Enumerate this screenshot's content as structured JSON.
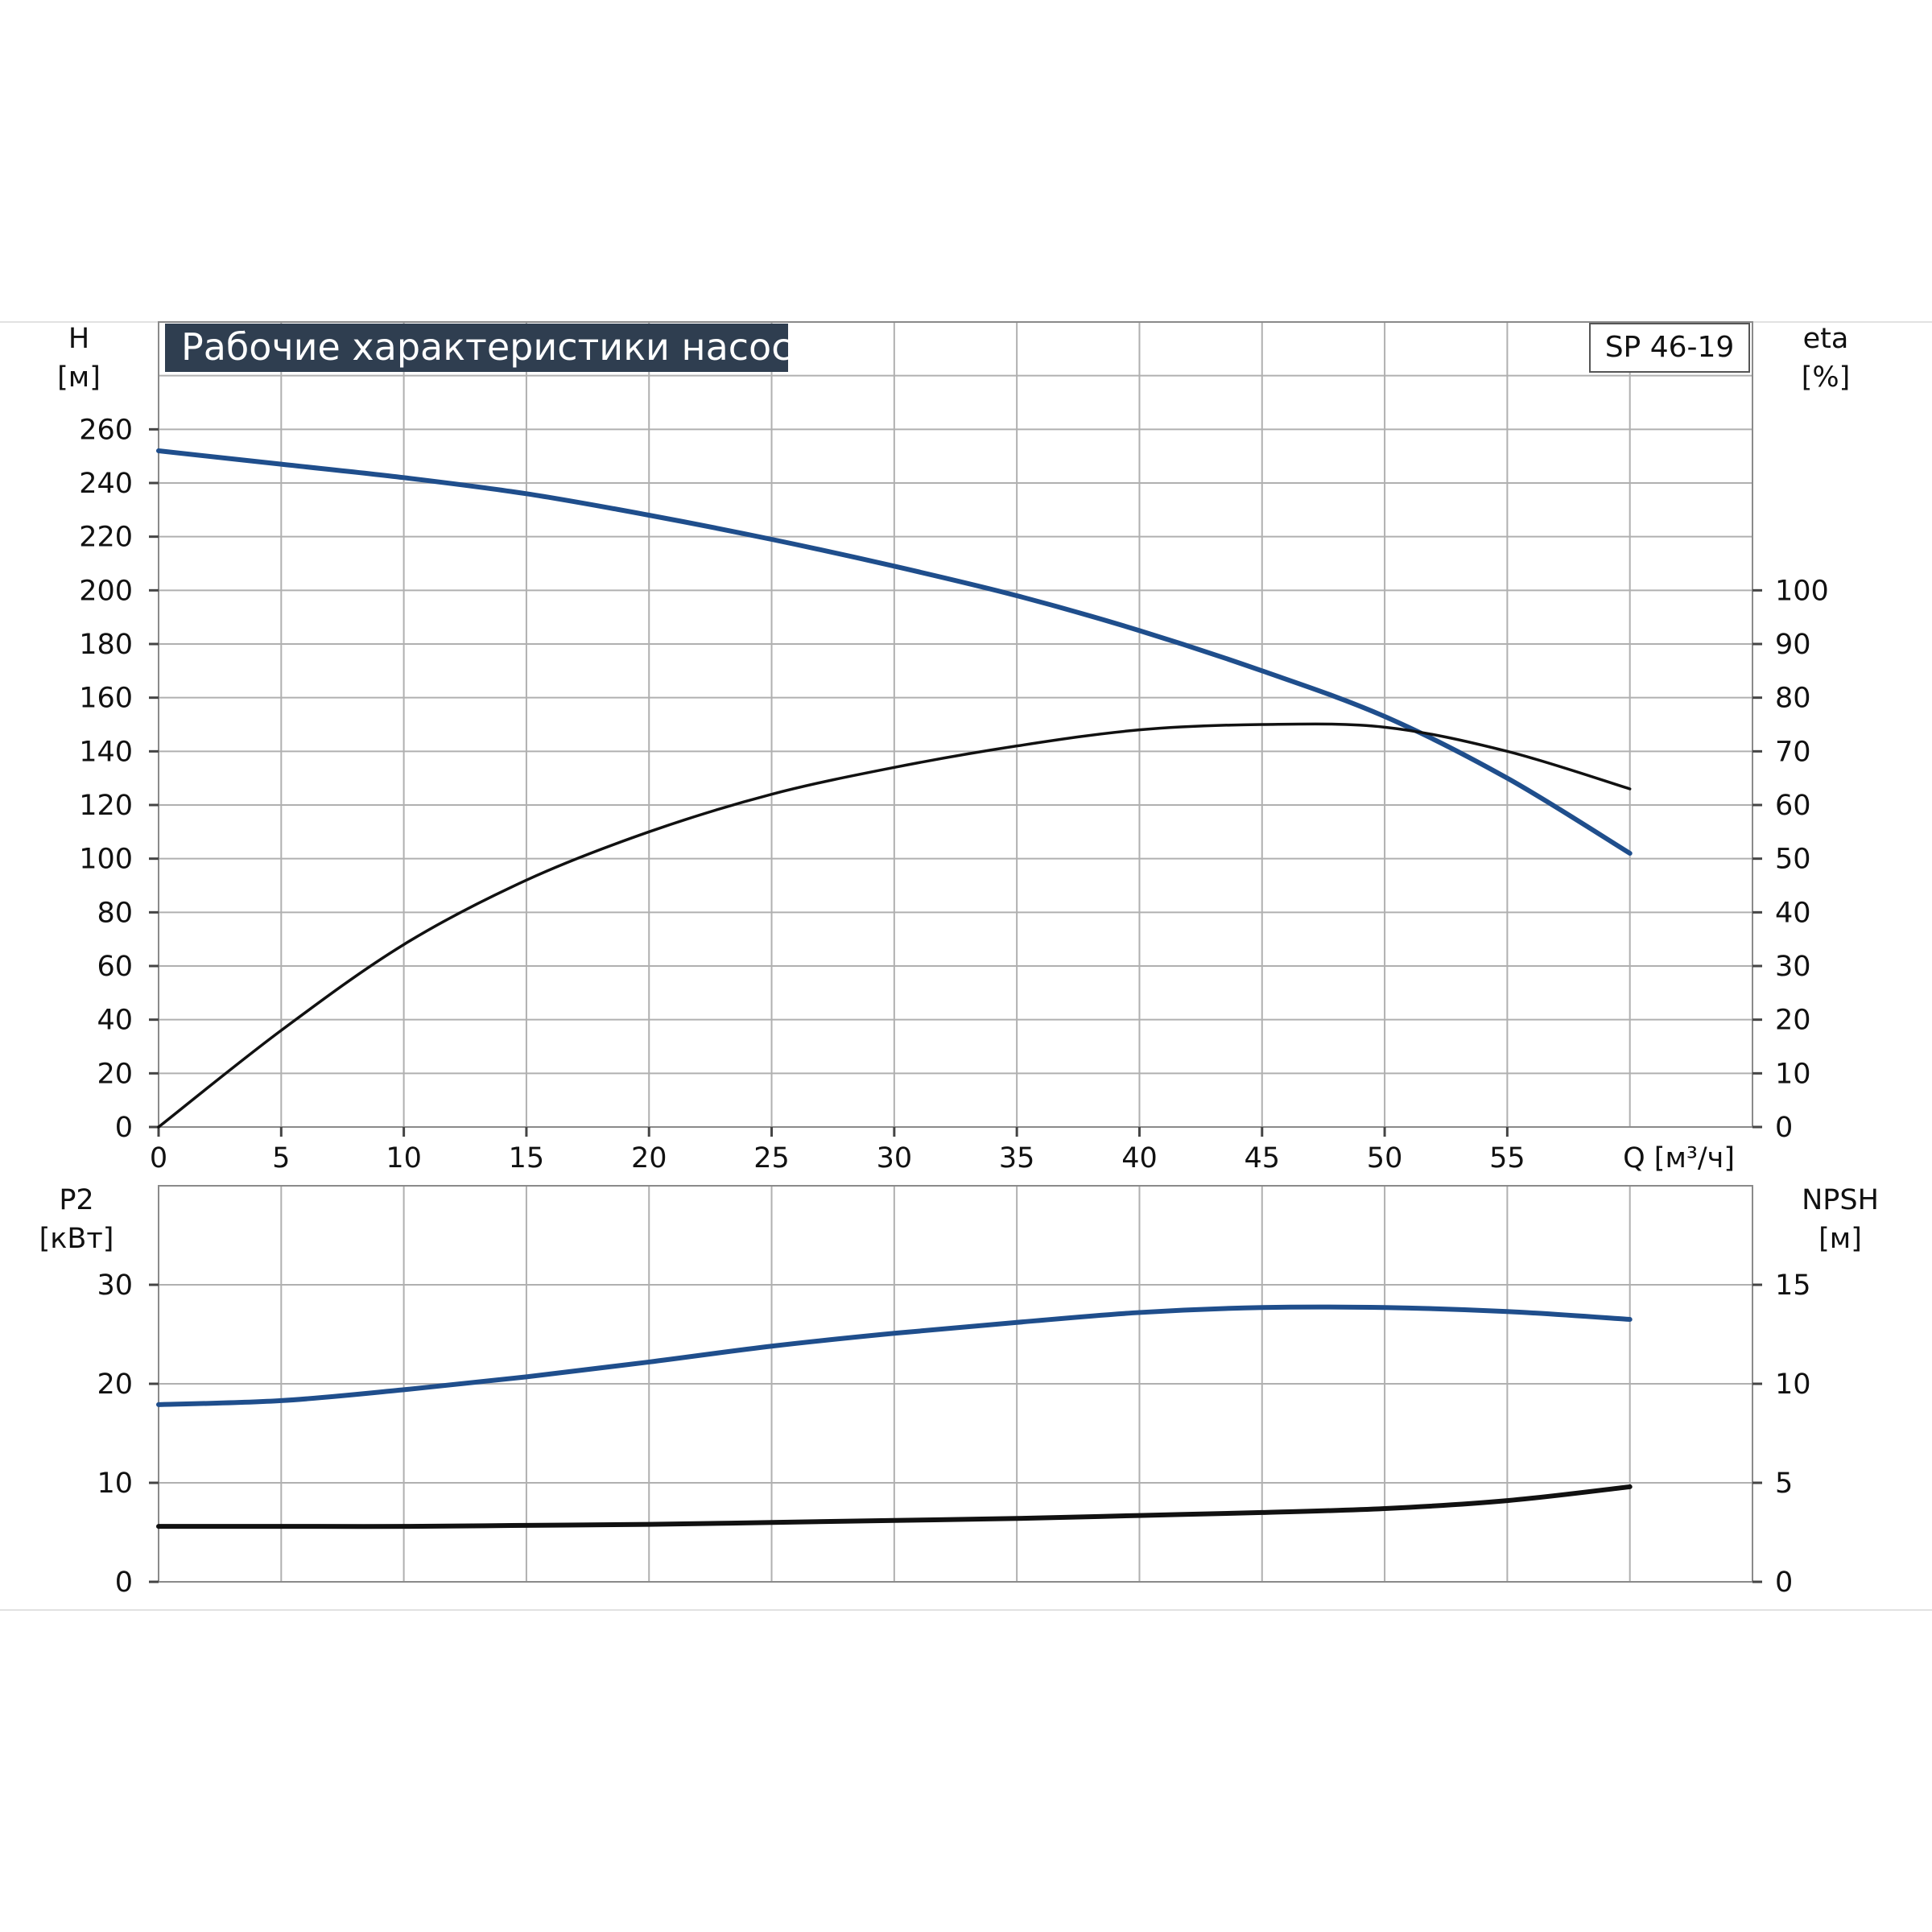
{
  "title": "Рабочие характеристики насоса",
  "model": "SP 46-19",
  "colors": {
    "blue": "#1f4e8c",
    "black": "#111111",
    "grid": "#b0b0b0",
    "title_bg": "#2f3e50"
  },
  "chart_data": [
    {
      "type": "line",
      "panel": "top",
      "x_axis": {
        "label": "Q [м³/ч]",
        "ticks": [
          "0",
          "5",
          "10",
          "15",
          "20",
          "25",
          "30",
          "35",
          "40",
          "45",
          "50",
          "55"
        ],
        "range": [
          0,
          65
        ]
      },
      "left_axis": {
        "label": "H",
        "unit": "[м]",
        "ticks": [
          "0",
          "20",
          "40",
          "60",
          "80",
          "100",
          "120",
          "140",
          "160",
          "180",
          "200",
          "220",
          "240",
          "260"
        ],
        "range": [
          0,
          300
        ]
      },
      "right_axis": {
        "label": "eta",
        "unit": "[%]",
        "ticks": [
          "0",
          "10",
          "20",
          "30",
          "40",
          "50",
          "60",
          "70",
          "80",
          "90",
          "100"
        ],
        "range": [
          0,
          150
        ]
      },
      "grid": true,
      "series": [
        {
          "axis": "left",
          "color": "blue",
          "x": [
            0,
            5,
            10,
            15,
            20,
            25,
            30,
            35,
            40,
            45,
            50,
            55,
            60
          ],
          "y": [
            252,
            247,
            242,
            236,
            228,
            219,
            209,
            198,
            185,
            170,
            153,
            130,
            102
          ]
        },
        {
          "axis": "right",
          "color": "black",
          "x": [
            0,
            5,
            10,
            15,
            20,
            25,
            30,
            35,
            40,
            45,
            50,
            55,
            60
          ],
          "y": [
            0,
            18,
            34,
            46,
            55,
            62,
            67,
            71,
            74,
            75,
            74.5,
            70,
            63
          ]
        }
      ]
    },
    {
      "type": "line",
      "panel": "bottom",
      "x_axis": {
        "ticks": [],
        "range": [
          0,
          65
        ]
      },
      "left_axis": {
        "label": "P2",
        "unit": "[кВт]",
        "ticks": [
          "0",
          "10",
          "20",
          "30"
        ],
        "range": [
          0,
          40
        ]
      },
      "right_axis": {
        "label": "NPSH",
        "unit": "[м]",
        "ticks": [
          "0",
          "5",
          "10",
          "15"
        ],
        "range": [
          0,
          20
        ]
      },
      "grid": true,
      "series": [
        {
          "axis": "left",
          "color": "blue",
          "x": [
            0,
            5,
            10,
            15,
            20,
            25,
            30,
            35,
            40,
            45,
            50,
            55,
            60
          ],
          "y": [
            17.9,
            18.3,
            19.4,
            20.7,
            22.2,
            23.8,
            25.1,
            26.2,
            27.2,
            27.7,
            27.7,
            27.3,
            26.5
          ]
        },
        {
          "axis": "right",
          "color": "black",
          "x": [
            0,
            5,
            10,
            15,
            20,
            25,
            30,
            35,
            40,
            45,
            50,
            55,
            60
          ],
          "y": [
            2.8,
            2.8,
            2.8,
            2.85,
            2.9,
            3.0,
            3.1,
            3.2,
            3.35,
            3.5,
            3.7,
            4.1,
            4.8
          ]
        }
      ]
    }
  ]
}
